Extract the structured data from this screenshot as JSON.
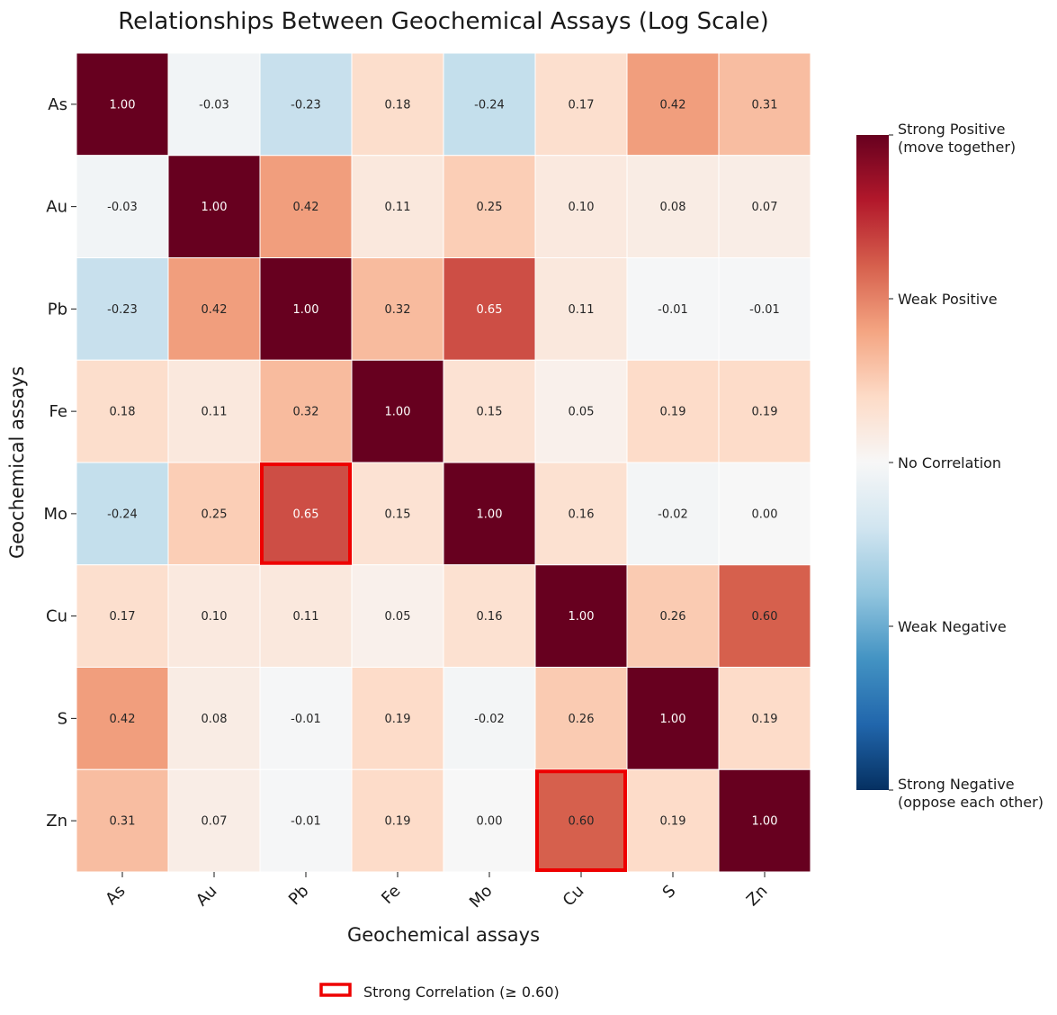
{
  "chart_data": {
    "type": "heatmap",
    "title": "Relationships Between Geochemical Assays (Log Scale)",
    "xlabel": "Geochemical assays",
    "ylabel": "Geochemical assays",
    "rows": [
      "As",
      "Au",
      "Pb",
      "Fe",
      "Mo",
      "Cu",
      "S",
      "Zn"
    ],
    "cols": [
      "As",
      "Au",
      "Pb",
      "Fe",
      "Mo",
      "Cu",
      "S",
      "Zn"
    ],
    "values": [
      [
        1.0,
        -0.03,
        -0.23,
        0.18,
        -0.24,
        0.17,
        0.42,
        0.31
      ],
      [
        -0.03,
        1.0,
        0.42,
        0.11,
        0.25,
        0.1,
        0.08,
        0.07
      ],
      [
        -0.23,
        0.42,
        1.0,
        0.32,
        0.65,
        0.11,
        -0.01,
        -0.01
      ],
      [
        0.18,
        0.11,
        0.32,
        1.0,
        0.15,
        0.05,
        0.19,
        0.19
      ],
      [
        -0.24,
        0.25,
        0.65,
        0.15,
        1.0,
        0.16,
        -0.02,
        0.0
      ],
      [
        0.17,
        0.1,
        0.11,
        0.05,
        0.16,
        1.0,
        0.26,
        0.6
      ],
      [
        0.42,
        0.08,
        -0.01,
        0.19,
        -0.02,
        0.26,
        1.0,
        0.19
      ],
      [
        0.31,
        0.07,
        -0.01,
        0.19,
        0.0,
        0.6,
        0.19,
        1.0
      ]
    ],
    "value_labels": [
      [
        "1.00",
        "-0.03",
        "-0.23",
        "0.18",
        "-0.24",
        "0.17",
        "0.42",
        "0.31"
      ],
      [
        "-0.03",
        "1.00",
        "0.42",
        "0.11",
        "0.25",
        "0.10",
        "0.08",
        "0.07"
      ],
      [
        "-0.23",
        "0.42",
        "1.00",
        "0.32",
        "0.65",
        "0.11",
        "-0.01",
        "-0.01"
      ],
      [
        "0.18",
        "0.11",
        "0.32",
        "1.00",
        "0.15",
        "0.05",
        "0.19",
        "0.19"
      ],
      [
        "-0.24",
        "0.25",
        "0.65",
        "0.15",
        "1.00",
        "0.16",
        "-0.02",
        "0.00"
      ],
      [
        "0.17",
        "0.10",
        "0.11",
        "0.05",
        "0.16",
        "1.00",
        "0.26",
        "0.60"
      ],
      [
        "0.42",
        "0.08",
        "-0.01",
        "0.19",
        "-0.02",
        "0.26",
        "1.00",
        "0.19"
      ],
      [
        "0.31",
        "0.07",
        "-0.01",
        "0.19",
        "0.00",
        "0.60",
        "0.19",
        "1.00"
      ]
    ],
    "highlighted_cells": [
      {
        "row": "Mo",
        "col": "Pb"
      },
      {
        "row": "Zn",
        "col": "Cu"
      }
    ],
    "highlight_color": "#ee0000",
    "colormap": "RdBu_r",
    "vmin": -1,
    "vmax": 1,
    "colorbar_ticks": [
      {
        "value": 1.0,
        "lines": [
          "Strong Positive",
          "(move together)"
        ]
      },
      {
        "value": 0.5,
        "lines": [
          "Weak Positive"
        ]
      },
      {
        "value": 0.0,
        "lines": [
          "No Correlation"
        ]
      },
      {
        "value": -0.5,
        "lines": [
          "Weak Negative"
        ]
      },
      {
        "value": -1.0,
        "lines": [
          "Strong Negative",
          "(oppose each other)"
        ]
      }
    ],
    "legend": {
      "label": "Strong Correlation (≥ 0.60)",
      "placement": "bottom-center"
    },
    "grid": false
  }
}
